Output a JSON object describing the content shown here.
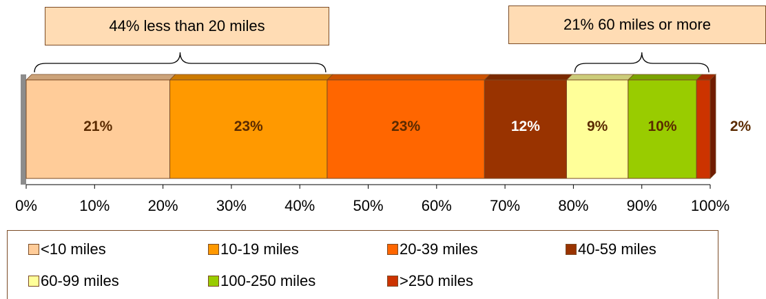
{
  "chart_data": {
    "type": "bar",
    "orientation": "horizontal-stacked",
    "xlim": [
      0,
      100
    ],
    "x_ticks": [
      "0%",
      "10%",
      "20%",
      "30%",
      "40%",
      "50%",
      "60%",
      "70%",
      "80%",
      "90%",
      "100%"
    ],
    "series": [
      {
        "name": "<10 miles",
        "value": 21,
        "label": "21%",
        "color": "#ffcc99"
      },
      {
        "name": "10-19 miles",
        "value": 23,
        "label": "23%",
        "color": "#ff9900"
      },
      {
        "name": "20-39 miles",
        "value": 23,
        "label": "23%",
        "color": "#ff6600"
      },
      {
        "name": "40-59 miles",
        "value": 12,
        "label": "12%",
        "color": "#993300"
      },
      {
        "name": "60-99 miles",
        "value": 9,
        "label": "9%",
        "color": "#ffff99"
      },
      {
        "name": "100-250 miles",
        "value": 10,
        "label": "10%",
        "color": "#99cc00"
      },
      {
        "name": ">250 miles",
        "value": 2,
        "label": "2%",
        "color": "#cc3300"
      }
    ],
    "annotations": [
      {
        "text": "44% less than 20 miles",
        "range": [
          0,
          44
        ]
      },
      {
        "text": "21% 60 miles or more",
        "range": [
          79,
          100
        ]
      }
    ],
    "legend_position": "bottom",
    "grid": false
  }
}
